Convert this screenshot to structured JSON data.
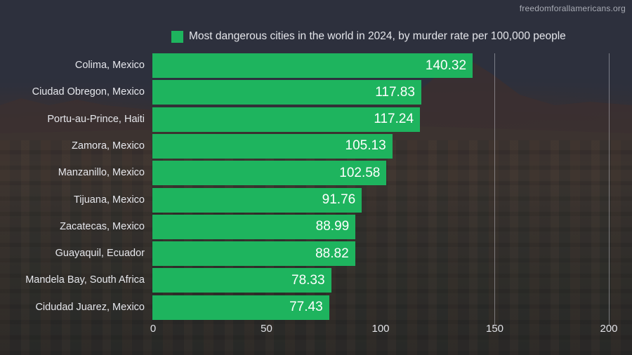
{
  "watermark": "freedomforallamericans.org",
  "colors": {
    "bar": "#1eb45e",
    "background": "#363b4a",
    "text": "#e6e7ec"
  },
  "legend": {
    "label": "Most dangerous cities in the world in 2024, by murder rate per 100,000 people"
  },
  "axis": {
    "ticks": [
      "0",
      "50",
      "100",
      "150",
      "200"
    ]
  },
  "chart_data": {
    "type": "bar",
    "orientation": "horizontal",
    "title": "",
    "xlabel": "",
    "ylabel": "",
    "legend": [
      "Most dangerous cities in the world in 2024, by murder rate per 100,000 people"
    ],
    "legend_position": "top",
    "grid": true,
    "xlim": [
      0,
      200
    ],
    "xticks": [
      0,
      50,
      100,
      150,
      200
    ],
    "categories": [
      "Colima, Mexico",
      "Ciudad Obregon, Mexico",
      "Portu-au-Prince, Haiti",
      "Zamora, Mexico",
      "Manzanillo, Mexico",
      "Tijuana, Mexico",
      "Zacatecas, Mexico",
      "Guayaquil, Ecuador",
      "Mandela Bay, South Africa",
      "Cidudad Juarez, Mexico"
    ],
    "values": [
      140.32,
      117.83,
      117.24,
      105.13,
      102.58,
      91.76,
      88.99,
      88.82,
      78.33,
      77.43
    ],
    "value_labels": [
      "140.32",
      "117.83",
      "117.24",
      "105.13",
      "102.58",
      "91.76",
      "88.99",
      "88.82",
      "78.33",
      "77.43"
    ]
  }
}
